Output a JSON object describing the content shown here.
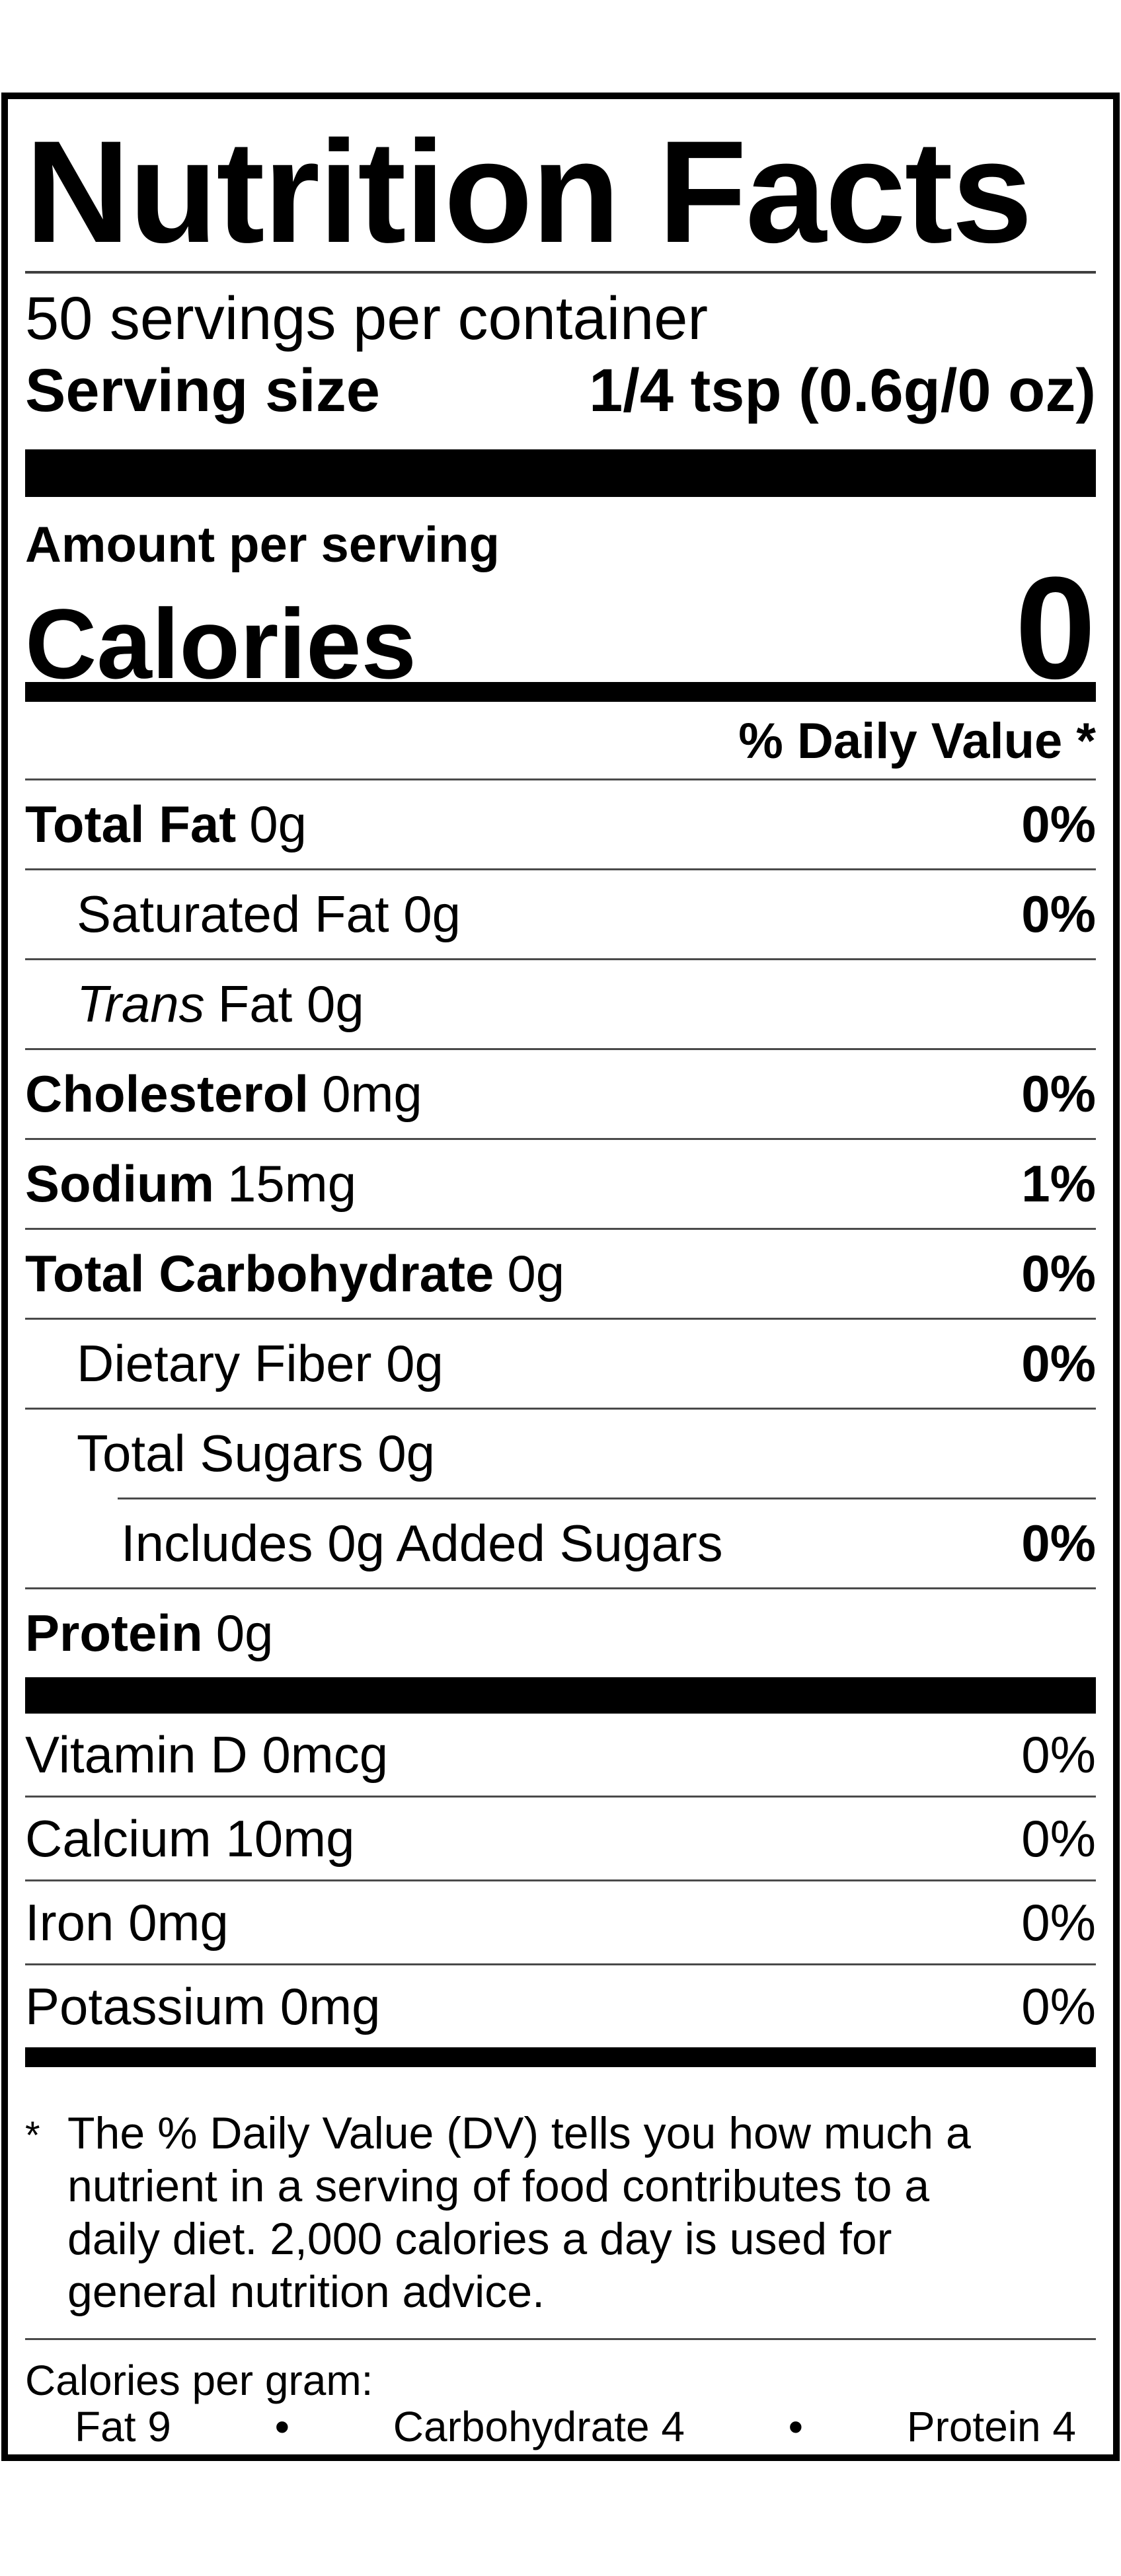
{
  "label": {
    "title": "Nutrition Facts",
    "servings_per_container": "50 servings per container",
    "serving_size": {
      "label": "Serving size",
      "value": "1/4 tsp (0.6g/0 oz)"
    },
    "amount_per_serving": "Amount per serving",
    "calories": {
      "label": "Calories",
      "value": "0"
    },
    "daily_value_header": "% Daily Value *",
    "rows": [
      {
        "strong": "Total Fat",
        "rest": "0g",
        "dv": "0%"
      },
      {
        "rest": "Saturated Fat 0g",
        "dv": "0%"
      },
      {
        "italic": "Trans",
        "rest": "Fat 0g",
        "dv": ""
      },
      {
        "strong": "Cholesterol",
        "rest": "0mg",
        "dv": "0%"
      },
      {
        "strong": "Sodium",
        "rest": "15mg",
        "dv": "1%"
      },
      {
        "strong": "Total Carbohydrate",
        "rest": "0g",
        "dv": "0%"
      },
      {
        "rest": "Dietary Fiber 0g",
        "dv": "0%"
      },
      {
        "rest": "Total Sugars 0g",
        "dv": ""
      },
      {
        "rest": "Includes 0g Added Sugars",
        "dv": "0%"
      },
      {
        "strong": "Protein",
        "rest": "0g",
        "dv": ""
      }
    ],
    "vitamins": [
      {
        "name": "Vitamin D 0mcg",
        "dv": "0%"
      },
      {
        "name": "Calcium 10mg",
        "dv": "0%"
      },
      {
        "name": "Iron 0mg",
        "dv": "0%"
      },
      {
        "name": "Potassium 0mg",
        "dv": "0%"
      }
    ],
    "footnote": {
      "asterisk": "*",
      "lines": [
        "The % Daily Value (DV) tells you how much a",
        "nutrient in a serving of food contributes to a",
        "daily diet. 2,000 calories a day is used for",
        "general nutrition advice."
      ]
    },
    "calories_per_gram": {
      "label": "Calories per gram:",
      "fat": "Fat 9",
      "bullet1": "•",
      "carbohydrate": "Carbohydrate 4",
      "bullet2": "•",
      "protein": "Protein 4"
    },
    "colors": {
      "ink": "#000000",
      "hairline": "#4a4a4a",
      "title_rule": "#3f3f3f",
      "background": "#ffffff"
    }
  }
}
